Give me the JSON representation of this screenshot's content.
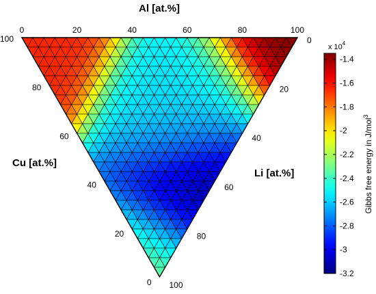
{
  "chart_data": {
    "type": "heatmap",
    "subtype": "ternary",
    "grid_divisions": 25,
    "axes": {
      "top": {
        "label": "Al [at.%]",
        "ticks": [
          "0",
          "20",
          "40",
          "60",
          "80",
          "100"
        ]
      },
      "left": {
        "label": "Cu  [at.%]",
        "ticks": [
          "100",
          "80",
          "60",
          "40",
          "20",
          "0"
        ]
      },
      "right": {
        "label": "Li [at.%]",
        "ticks": [
          "0",
          "20",
          "40",
          "60",
          "80",
          "100"
        ]
      }
    },
    "colorbar": {
      "label": "Gibbs free energy in J/mol",
      "label_superscript": "3",
      "multiplier_base": "x 10",
      "multiplier_exponent": "4",
      "ticks": [
        "-1.4",
        "-1.6",
        "-1.8",
        "-2",
        "-2.2",
        "-2.4",
        "-2.6",
        "-2.8",
        "-3",
        "-3.2"
      ],
      "range": [
        -3.2,
        -1.35
      ],
      "colormap": "jet"
    },
    "value_model": {
      "description_points": [
        {
          "Al": 100,
          "Cu": 0,
          "Li": 0,
          "value": -1.35
        },
        {
          "Al": 0,
          "Cu": 100,
          "Li": 0,
          "value": -1.65
        },
        {
          "Al": 0,
          "Cu": 0,
          "Li": 100,
          "value": -2.25
        },
        {
          "Al": 33,
          "Cu": 0,
          "Li": 67,
          "value": -3.2
        },
        {
          "Al": 45,
          "Cu": 25,
          "Li": 30,
          "value": -2.55
        }
      ]
    }
  }
}
